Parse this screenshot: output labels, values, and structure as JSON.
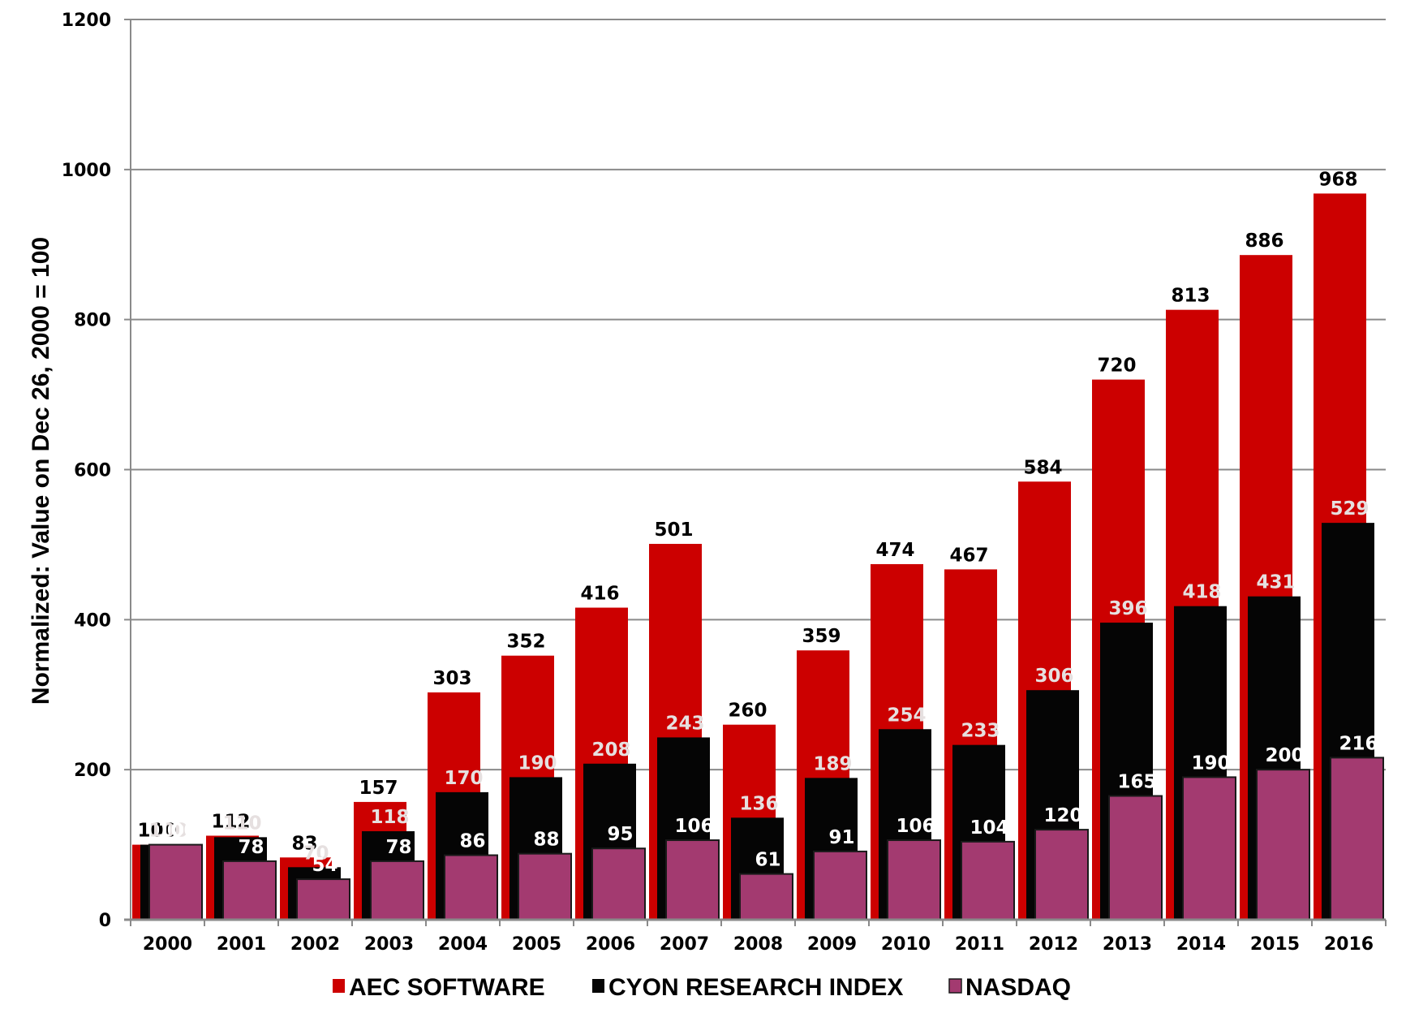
{
  "chart_data": {
    "type": "bar",
    "title": "",
    "xlabel": "",
    "ylabel": "Normalized: Value on Dec 26, 2000 = 100",
    "ylim": [
      0,
      1200
    ],
    "yticks": [
      0,
      200,
      400,
      600,
      800,
      1000,
      1200
    ],
    "grid": true,
    "legend_position": "bottom",
    "categories": [
      "2000",
      "2001",
      "2002",
      "2003",
      "2004",
      "2005",
      "2006",
      "2007",
      "2008",
      "2009",
      "2010",
      "2011",
      "2012",
      "2013",
      "2014",
      "2015",
      "2016"
    ],
    "series": [
      {
        "name": "AEC SOFTWARE",
        "color": "#cc0000",
        "label_color": "#000000",
        "values": [
          100,
          112,
          83,
          157,
          303,
          352,
          416,
          501,
          260,
          359,
          474,
          467,
          584,
          720,
          813,
          886,
          968
        ]
      },
      {
        "name": "CYON RESEARCH INDEX",
        "color": "#050505",
        "label_color": "#e6e0e0",
        "values": [
          100,
          110,
          70,
          118,
          170,
          190,
          208,
          243,
          136,
          189,
          254,
          233,
          306,
          396,
          418,
          431,
          529
        ]
      },
      {
        "name": "NASDAQ",
        "color": "#a33a70",
        "label_color": "#ffffff",
        "values": [
          100,
          78,
          54,
          78,
          86,
          88,
          95,
          106,
          61,
          91,
          106,
          104,
          120,
          165,
          190,
          200,
          216
        ]
      }
    ]
  }
}
